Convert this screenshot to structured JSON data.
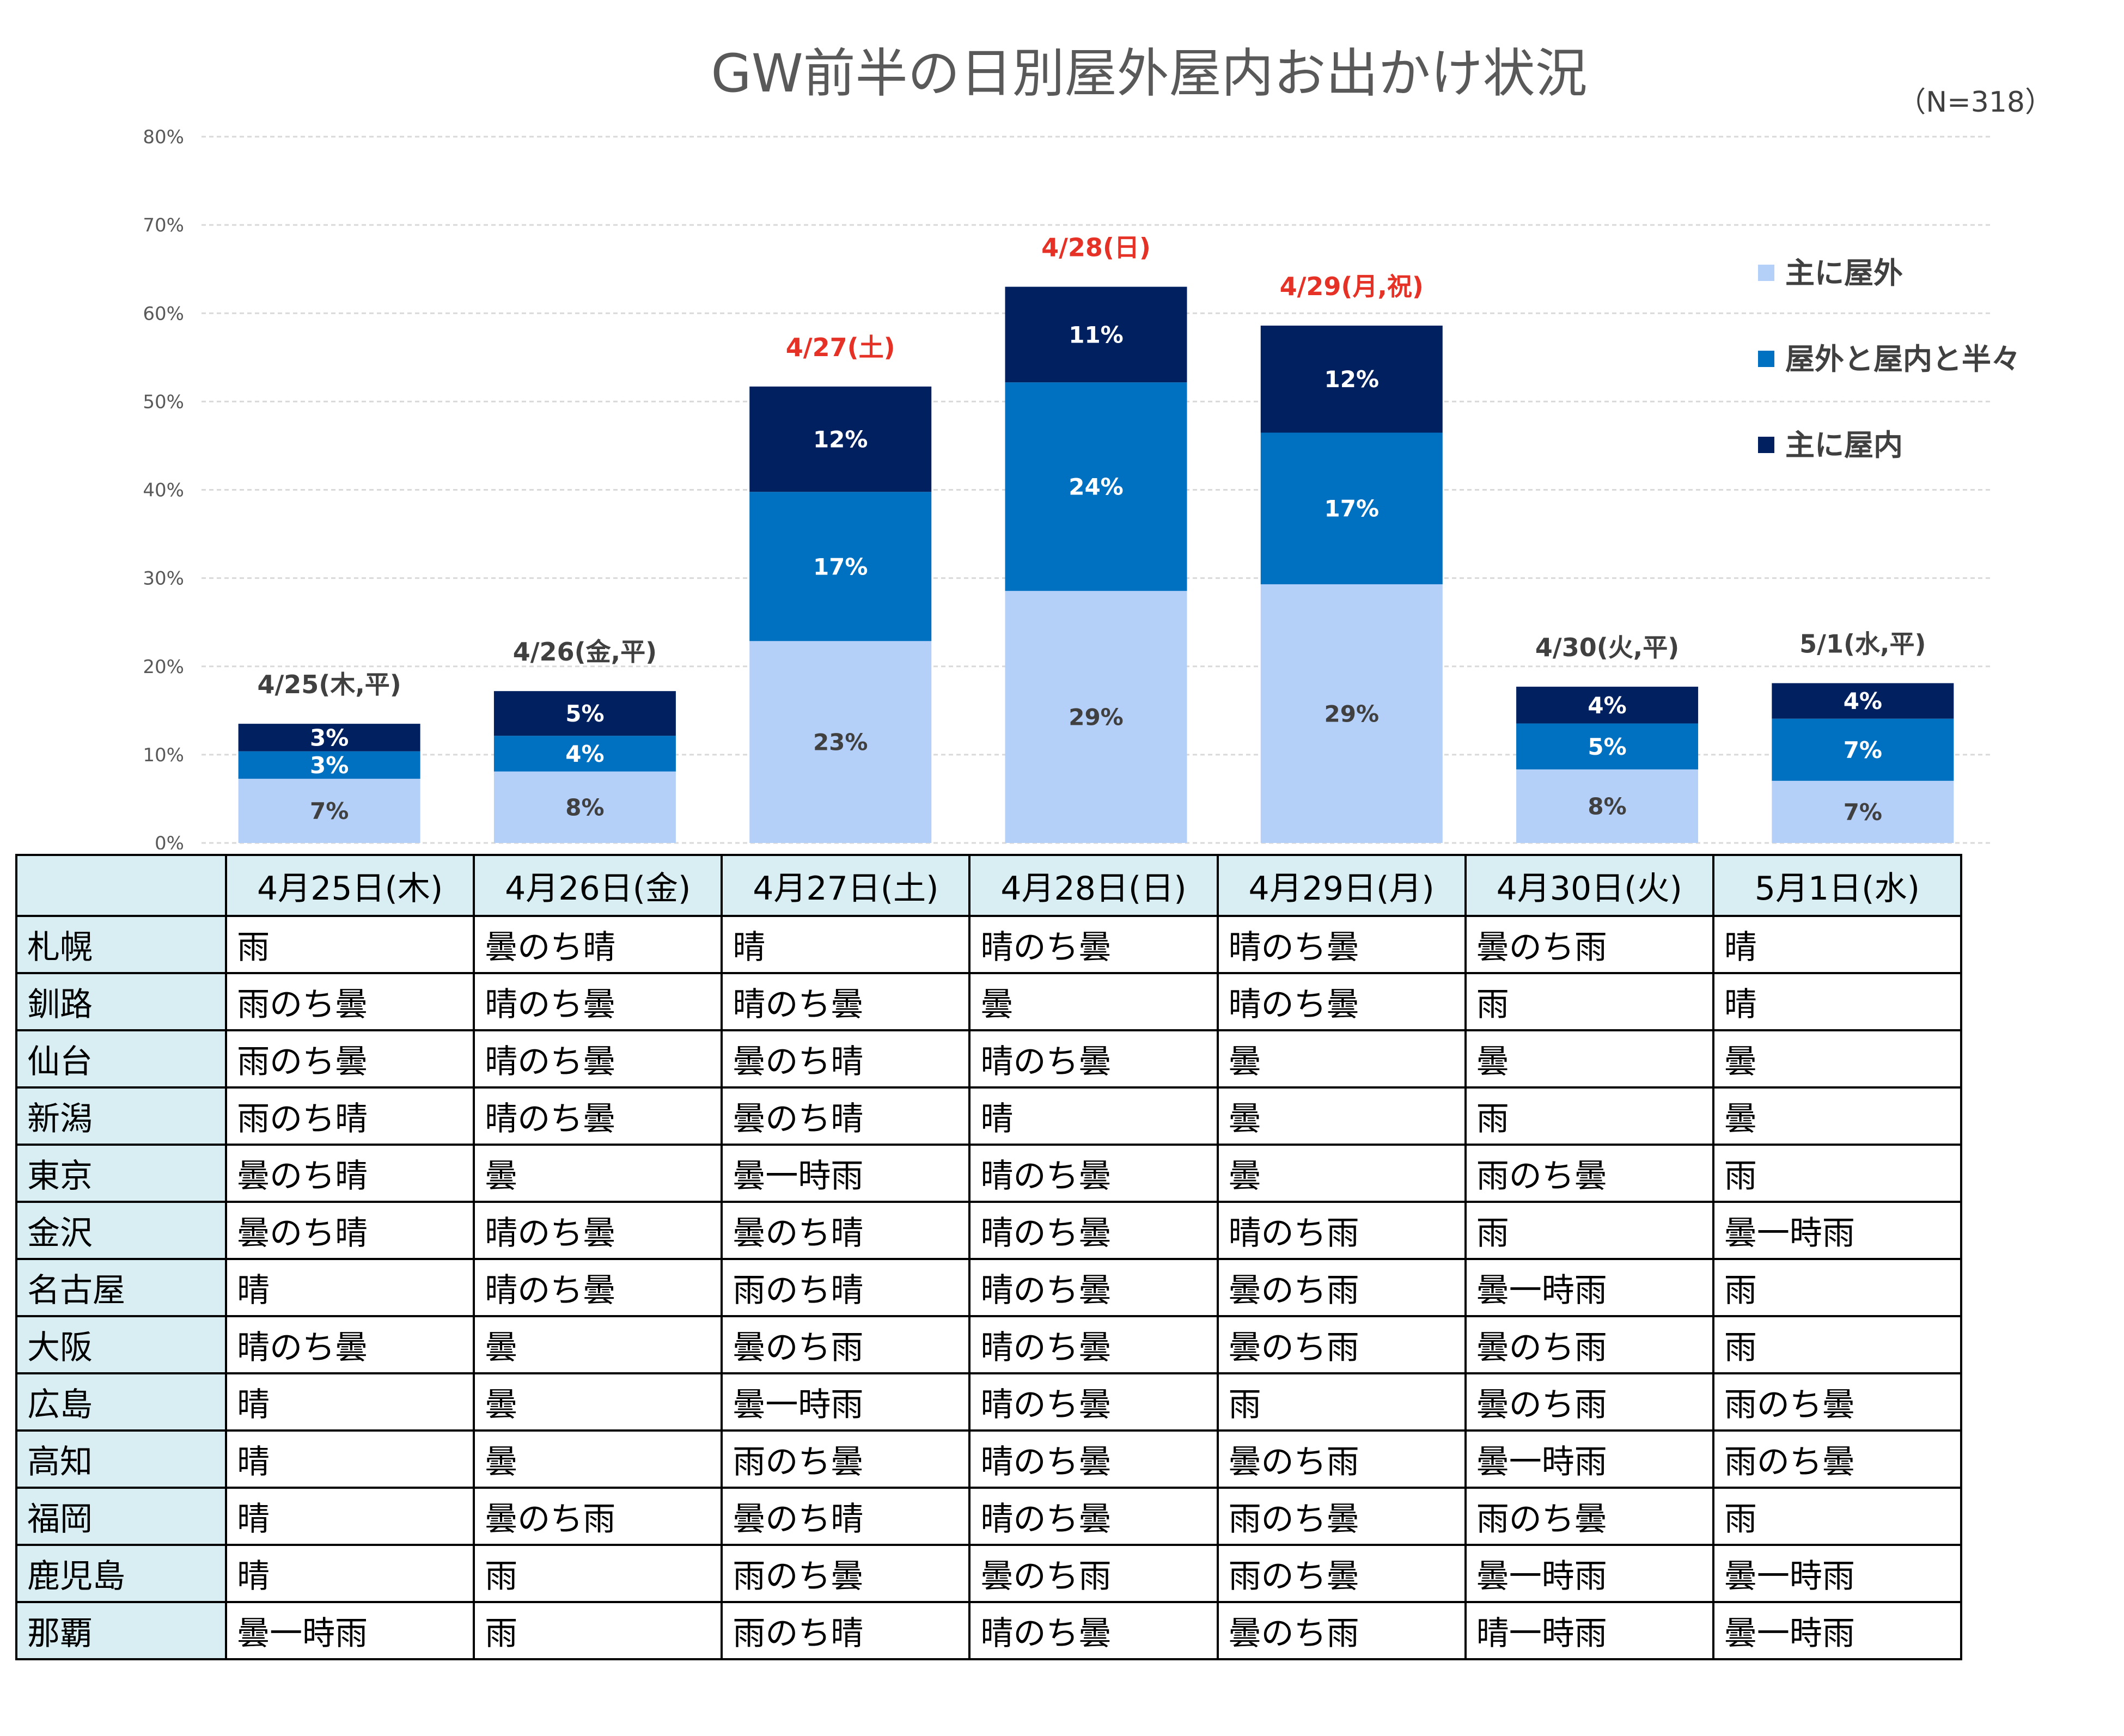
{
  "chart_data": {
    "type": "bar",
    "stacked": true,
    "title": "GW前半の日別屋外屋内お出かけ状況",
    "note": "（N=318）",
    "categories": [
      "4/25(木,平)",
      "4/26(金,平)",
      "4/27(土)",
      "4/28(日)",
      "4/29(月,祝)",
      "4/30(火,平)",
      "5/1(水,平)"
    ],
    "holiday": [
      false,
      false,
      true,
      true,
      true,
      false,
      false
    ],
    "holiday_color": "#e63226",
    "series": [
      {
        "name": "主に屋外",
        "color": "#b4cff8",
        "values": [
          7,
          8,
          23,
          29,
          29,
          8,
          7
        ],
        "labels": [
          "7%",
          "8%",
          "23%",
          "29%",
          "29%",
          "8%",
          "7%"
        ],
        "label_color": "#404040"
      },
      {
        "name": "屋外と屋内と半々",
        "color": "#0070c0",
        "values": [
          3,
          4,
          17,
          24,
          17,
          5,
          7
        ],
        "labels": [
          "3%",
          "4%",
          "17%",
          "24%",
          "17%",
          "5%",
          "7%"
        ],
        "label_color": "#ffffff"
      },
      {
        "name": "主に屋内",
        "color": "#002060",
        "values": [
          3,
          5,
          12,
          11,
          12,
          4,
          4
        ],
        "labels": [
          "3%",
          "5%",
          "12%",
          "11%",
          "12%",
          "4%",
          "4%"
        ],
        "label_color": "#ffffff"
      }
    ],
    "totals": [
      13.5,
      17.2,
      51.7,
      63.0,
      58.6,
      17.7,
      18.1
    ],
    "ylim": [
      0,
      80
    ],
    "yticks": [
      "0%",
      "10%",
      "20%",
      "30%",
      "40%",
      "50%",
      "60%",
      "70%",
      "80%"
    ],
    "grid": true,
    "legend": "right"
  },
  "table": {
    "header": [
      "",
      "4月25日(木)",
      "4月26日(金)",
      "4月27日(土)",
      "4月28日(日)",
      "4月29日(月)",
      "4月30日(火)",
      "5月1日(水)"
    ],
    "rows": [
      {
        "city": "札幌",
        "cells": [
          "雨",
          "曇のち晴",
          "晴",
          "晴のち曇",
          "晴のち曇",
          "曇のち雨",
          "晴"
        ]
      },
      {
        "city": "釧路",
        "cells": [
          "雨のち曇",
          "晴のち曇",
          "晴のち曇",
          "曇",
          "晴のち曇",
          "雨",
          "晴"
        ]
      },
      {
        "city": "仙台",
        "cells": [
          "雨のち曇",
          "晴のち曇",
          "曇のち晴",
          "晴のち曇",
          "曇",
          "曇",
          "曇"
        ]
      },
      {
        "city": "新潟",
        "cells": [
          "雨のち晴",
          "晴のち曇",
          "曇のち晴",
          "晴",
          "曇",
          "雨",
          "曇"
        ]
      },
      {
        "city": "東京",
        "cells": [
          "曇のち晴",
          "曇",
          "曇一時雨",
          "晴のち曇",
          "曇",
          "雨のち曇",
          "雨"
        ]
      },
      {
        "city": "金沢",
        "cells": [
          "曇のち晴",
          "晴のち曇",
          "曇のち晴",
          "晴のち曇",
          "晴のち雨",
          "雨",
          "曇一時雨"
        ]
      },
      {
        "city": "名古屋",
        "cells": [
          "晴",
          "晴のち曇",
          "雨のち晴",
          "晴のち曇",
          "曇のち雨",
          "曇一時雨",
          "雨"
        ]
      },
      {
        "city": "大阪",
        "cells": [
          "晴のち曇",
          "曇",
          "曇のち雨",
          "晴のち曇",
          "曇のち雨",
          "曇のち雨",
          "雨"
        ]
      },
      {
        "city": "広島",
        "cells": [
          "晴",
          "曇",
          "曇一時雨",
          "晴のち曇",
          "雨",
          "曇のち雨",
          "雨のち曇"
        ]
      },
      {
        "city": "高知",
        "cells": [
          "晴",
          "曇",
          "雨のち曇",
          "晴のち曇",
          "曇のち雨",
          "曇一時雨",
          "雨のち曇"
        ]
      },
      {
        "city": "福岡",
        "cells": [
          "晴",
          "曇のち雨",
          "曇のち晴",
          "晴のち曇",
          "雨のち曇",
          "雨のち曇",
          "雨"
        ]
      },
      {
        "city": "鹿児島",
        "cells": [
          "晴",
          "雨",
          "雨のち曇",
          "曇のち雨",
          "雨のち曇",
          "曇一時雨",
          "曇一時雨"
        ]
      },
      {
        "city": "那覇",
        "cells": [
          "曇一時雨",
          "雨",
          "雨のち晴",
          "晴のち曇",
          "曇のち雨",
          "晴一時雨",
          "曇一時雨"
        ]
      }
    ]
  }
}
